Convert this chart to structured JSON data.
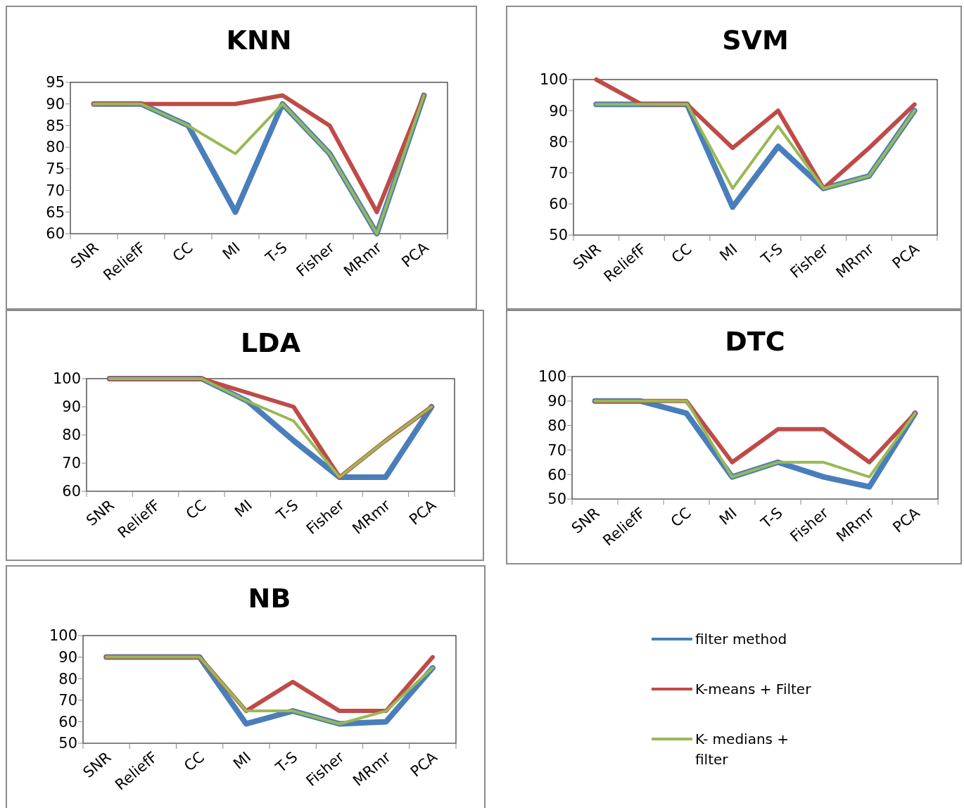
{
  "chart_data": [
    {
      "type": "line",
      "title": "KNN",
      "categories": [
        "SNR",
        "ReliefF",
        "CC",
        "MI",
        "T-S",
        "Fisher",
        "MRmr",
        "PCA"
      ],
      "ylim": [
        60,
        95
      ],
      "yticks": [
        60,
        65,
        70,
        75,
        80,
        85,
        90,
        95
      ],
      "grid": false,
      "legend": false,
      "marker": "none",
      "series": [
        {
          "color": "#4a7ebb",
          "values": [
            90,
            90,
            85,
            65,
            90,
            78.5,
            60,
            92
          ]
        },
        {
          "color": "#be4b48",
          "values": [
            90,
            90,
            90,
            90,
            92,
            85,
            65,
            92
          ]
        },
        {
          "color": "#98b954",
          "values": [
            90,
            90,
            85,
            78.5,
            90,
            78.5,
            60,
            92
          ]
        }
      ]
    },
    {
      "type": "line",
      "title": "SVM",
      "categories": [
        "SNR",
        "ReliefF",
        "CC",
        "MI",
        "T-S",
        "Fisher",
        "MRmr",
        "PCA"
      ],
      "ylim": [
        50,
        100
      ],
      "yticks": [
        50,
        60,
        70,
        80,
        90,
        100
      ],
      "grid": false,
      "legend": false,
      "marker": "none",
      "series": [
        {
          "color": "#4a7ebb",
          "values": [
            92,
            92,
            92,
            59,
            78.5,
            65,
            69,
            90
          ]
        },
        {
          "color": "#be4b48",
          "values": [
            100,
            92,
            92,
            78,
            90,
            65,
            78,
            92
          ]
        },
        {
          "color": "#98b954",
          "values": [
            92,
            92,
            92,
            65,
            85,
            65,
            69,
            90
          ]
        }
      ]
    },
    {
      "type": "line",
      "title": "LDA",
      "categories": [
        "SNR",
        "ReliefF",
        "CC",
        "MI",
        "T-S",
        "Fisher",
        "MRmr",
        "PCA"
      ],
      "ylim": [
        60,
        100
      ],
      "yticks": [
        60,
        70,
        80,
        90,
        100
      ],
      "grid": false,
      "legend": false,
      "marker": "none",
      "series": [
        {
          "color": "#4a7ebb",
          "values": [
            100,
            100,
            100,
            92,
            78,
            65,
            65,
            90
          ]
        },
        {
          "color": "#be4b48",
          "values": [
            100,
            100,
            100,
            95,
            90,
            65,
            78,
            90
          ]
        },
        {
          "color": "#98b954",
          "values": [
            100,
            100,
            100,
            92,
            85,
            65,
            78,
            90
          ]
        }
      ]
    },
    {
      "type": "line",
      "title": "DTC",
      "categories": [
        "SNR",
        "ReliefF",
        "CC",
        "MI",
        "T-S",
        "Fisher",
        "MRmr",
        "PCA"
      ],
      "ylim": [
        50,
        100
      ],
      "yticks": [
        50,
        60,
        70,
        80,
        90,
        100
      ],
      "grid": false,
      "legend": false,
      "marker": "none",
      "series": [
        {
          "color": "#4a7ebb",
          "values": [
            90,
            90,
            85,
            59,
            65,
            59,
            55,
            85
          ]
        },
        {
          "color": "#be4b48",
          "values": [
            90,
            90,
            90,
            65,
            78.5,
            78.5,
            65,
            85
          ]
        },
        {
          "color": "#98b954",
          "values": [
            90,
            90,
            90,
            59,
            65,
            65,
            59,
            85
          ]
        }
      ]
    },
    {
      "type": "line",
      "title": "NB",
      "categories": [
        "SNR",
        "ReliefF",
        "CC",
        "MI",
        "T-S",
        "Fisher",
        "MRmr",
        "PCA"
      ],
      "ylim": [
        50,
        100
      ],
      "yticks": [
        50,
        60,
        70,
        80,
        90,
        100
      ],
      "grid": false,
      "legend": "right",
      "marker": "none",
      "series": [
        {
          "name": "filter method",
          "color": "#4a7ebb",
          "values": [
            90,
            90,
            90,
            59,
            65,
            59,
            60,
            85
          ]
        },
        {
          "name": "K-means + Filter",
          "color": "#be4b48",
          "values": [
            90,
            90,
            90,
            65,
            78.5,
            65,
            65,
            90
          ]
        },
        {
          "name": "K- medians + filter",
          "color": "#98b954",
          "values": [
            90,
            90,
            90,
            65,
            65,
            59,
            65,
            85
          ]
        }
      ]
    }
  ]
}
